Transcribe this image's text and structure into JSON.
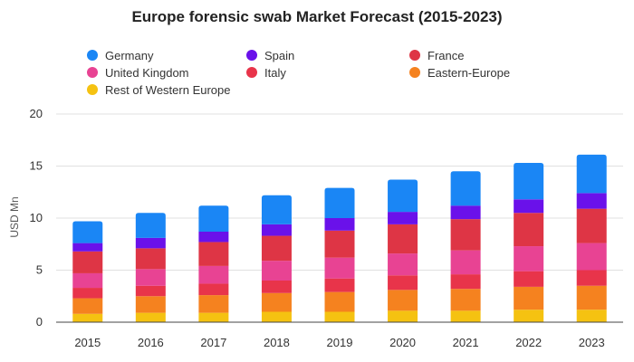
{
  "chart_data": {
    "type": "bar",
    "stacked": true,
    "title": "Europe forensic swab Market Forecast (2015-2023)",
    "xlabel": "",
    "ylabel": "USD Mn",
    "ylim": [
      0,
      20
    ],
    "yticks": [
      0,
      5,
      10,
      15,
      20
    ],
    "grid": true,
    "legend_position": "top",
    "categories": [
      "2015",
      "2016",
      "2017",
      "2018",
      "2019",
      "2020",
      "2021",
      "2022",
      "2023"
    ],
    "series": [
      {
        "name": "Rest of Western Europe",
        "color": "#f5c211",
        "values": [
          0.8,
          0.9,
          0.9,
          1.0,
          1.0,
          1.1,
          1.1,
          1.2,
          1.2
        ]
      },
      {
        "name": "Eastern-Europe",
        "color": "#f5821f",
        "values": [
          1.5,
          1.6,
          1.7,
          1.8,
          1.9,
          2.0,
          2.1,
          2.2,
          2.3
        ]
      },
      {
        "name": "Italy",
        "color": "#e8344a",
        "values": [
          1.0,
          1.0,
          1.1,
          1.2,
          1.3,
          1.4,
          1.4,
          1.5,
          1.5
        ]
      },
      {
        "name": "United Kingdom",
        "color": "#e84393",
        "values": [
          1.4,
          1.6,
          1.7,
          1.9,
          2.0,
          2.1,
          2.3,
          2.4,
          2.6
        ]
      },
      {
        "name": "France",
        "color": "#de3545",
        "values": [
          2.1,
          2.0,
          2.3,
          2.4,
          2.6,
          2.8,
          3.0,
          3.2,
          3.3
        ]
      },
      {
        "name": "Spain",
        "color": "#6a11ea",
        "values": [
          0.8,
          1.0,
          1.0,
          1.1,
          1.2,
          1.2,
          1.3,
          1.3,
          1.5
        ]
      },
      {
        "name": "Germany",
        "color": "#1a86f5",
        "values": [
          2.1,
          2.4,
          2.5,
          2.8,
          2.9,
          3.1,
          3.3,
          3.5,
          3.7
        ]
      }
    ],
    "legend_order": [
      "Germany",
      "Spain",
      "France",
      "United Kingdom",
      "Italy",
      "Eastern-Europe",
      "Rest of Western Europe"
    ]
  }
}
